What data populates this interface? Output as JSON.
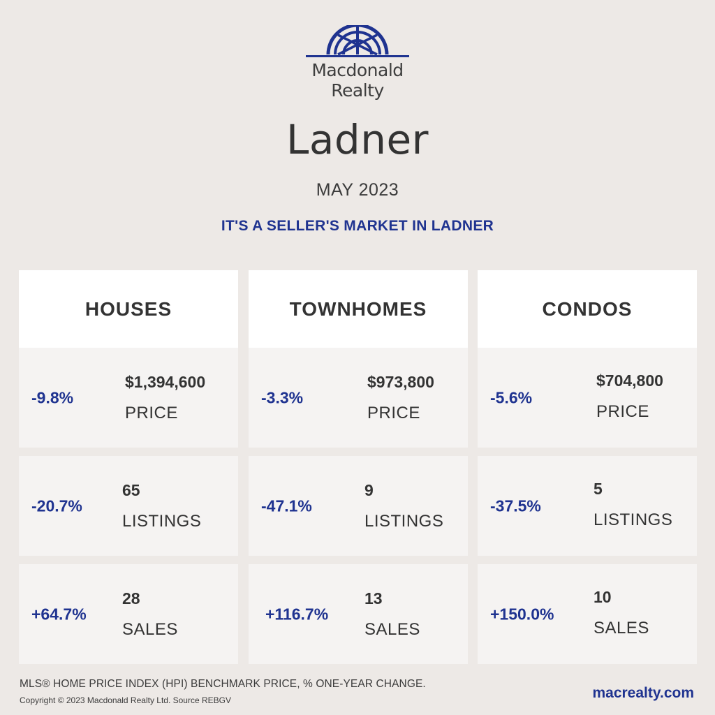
{
  "header": {
    "brand_line1": "Macdonald",
    "brand_line2": "Realty",
    "city": "Ladner",
    "month": "MAY 2023",
    "tagline": "IT'S A SELLER'S MARKET IN LADNER"
  },
  "colors": {
    "accent": "#1f3390",
    "background": "#ede9e6",
    "header_card": "#ffffff",
    "cell_card": "#f5f3f2"
  },
  "columns": [
    {
      "title": "HOUSES",
      "rows": [
        {
          "change": "-9.8%",
          "value": "$1,394,600",
          "label": "PRICE"
        },
        {
          "change": "-20.7%",
          "value": "65",
          "label": "LISTINGS"
        },
        {
          "change": "+64.7%",
          "value": "28",
          "label": "SALES"
        }
      ]
    },
    {
      "title": "TOWNHOMES",
      "rows": [
        {
          "change": "-3.3%",
          "value": "$973,800",
          "label": "PRICE"
        },
        {
          "change": "-47.1%",
          "value": "9",
          "label": "LISTINGS"
        },
        {
          "change": "+116.7%",
          "value": "13",
          "label": "SALES"
        }
      ]
    },
    {
      "title": "CONDOS",
      "rows": [
        {
          "change": "-5.6%",
          "value": "$704,800",
          "label": "PRICE"
        },
        {
          "change": "-37.5%",
          "value": "5",
          "label": "LISTINGS"
        },
        {
          "change": "+150.0%",
          "value": "10",
          "label": "SALES"
        }
      ]
    }
  ],
  "footer": {
    "note": "MLS® HOME PRICE INDEX (HPI) BENCHMARK PRICE, % ONE-YEAR CHANGE.",
    "copyright": "Copyright © 2023 Macdonald Realty Ltd. Source REBGV",
    "website": "macrealty.com"
  }
}
